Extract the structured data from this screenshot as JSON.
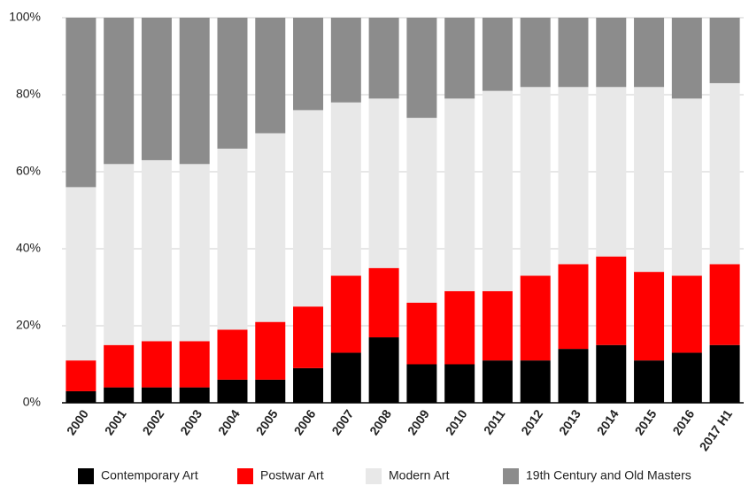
{
  "chart_data": {
    "type": "stacked_bar",
    "categories": [
      "2000",
      "2001",
      "2002",
      "2003",
      "2004",
      "2005",
      "2006",
      "2007",
      "2008",
      "2009",
      "2010",
      "2011",
      "2012",
      "2013",
      "2014",
      "2015",
      "2016",
      "2017 H1"
    ],
    "series": [
      {
        "name": "Contemporary Art",
        "color": "#000000",
        "values": [
          3,
          4,
          4,
          4,
          6,
          6,
          9,
          13,
          17,
          10,
          10,
          11,
          11,
          14,
          15,
          11,
          13,
          15
        ]
      },
      {
        "name": "Postwar Art",
        "color": "#ff0000",
        "values": [
          8,
          11,
          12,
          12,
          13,
          15,
          16,
          20,
          18,
          16,
          19,
          18,
          22,
          22,
          23,
          23,
          20,
          21
        ]
      },
      {
        "name": "Modern Art",
        "color": "#e8e8e8",
        "values": [
          45,
          47,
          47,
          46,
          47,
          49,
          51,
          45,
          44,
          48,
          50,
          52,
          49,
          46,
          44,
          48,
          46,
          47
        ]
      },
      {
        "name": "19th Century and Old Masters",
        "color": "#8c8c8c",
        "values": [
          44,
          38,
          37,
          38,
          34,
          30,
          24,
          22,
          21,
          26,
          21,
          19,
          18,
          18,
          18,
          18,
          21,
          17
        ]
      }
    ],
    "ylim": [
      0,
      100
    ],
    "yticks": [
      {
        "value": 0,
        "label": "0%"
      },
      {
        "value": 20,
        "label": "20%"
      },
      {
        "value": 40,
        "label": "40%"
      },
      {
        "value": 60,
        "label": "60%"
      },
      {
        "value": 80,
        "label": "80%"
      },
      {
        "value": 100,
        "label": "100%"
      }
    ],
    "grid": true,
    "legend": "bottom"
  }
}
